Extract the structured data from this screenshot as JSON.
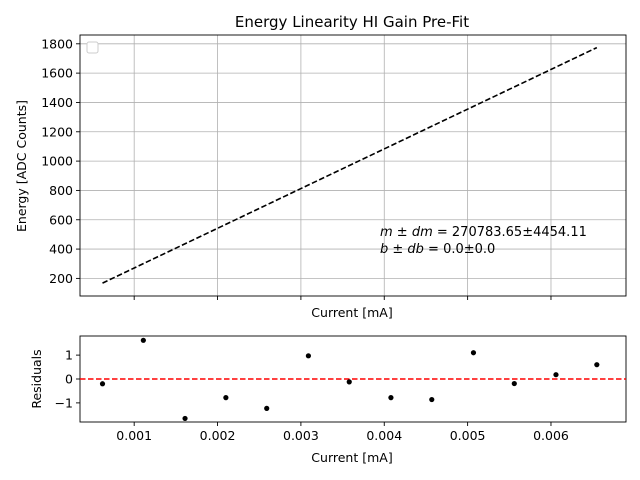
{
  "chart_data": [
    {
      "type": "line",
      "title": "Energy Linearity HI Gain Pre-Fit",
      "xlabel": "Current [mA]",
      "ylabel": "Energy [ADC Counts]",
      "xlim": [
        0.00035,
        0.0069
      ],
      "ylim": [
        80,
        1860
      ],
      "grid": true,
      "legend": "top-left (empty)",
      "yticks": [
        "200",
        "400",
        "600",
        "800",
        "1000",
        "1200",
        "1400",
        "1600",
        "1800"
      ],
      "xticks_shown": false,
      "line_color": "#000000",
      "line_style": "dashed",
      "series": [
        {
          "x": [
            0.00062,
            0.00655
          ],
          "y": [
            168,
            1774
          ]
        }
      ],
      "annotation": {
        "line1_label": "m ± dm",
        "line1_value": " = 270783.65±4454.11",
        "line2_label": "b ± db",
        "line2_value": " = 0.0±0.0"
      }
    },
    {
      "type": "scatter",
      "xlabel": "Current [mA]",
      "ylabel": "Residuals",
      "xlim": [
        0.00035,
        0.0069
      ],
      "ylim": [
        -1.8,
        1.8
      ],
      "grid": false,
      "reference_line": {
        "y": 0,
        "color": "#ff0000",
        "style": "dashed"
      },
      "point_color": "#000000",
      "xticks": [
        "0.001",
        "0.002",
        "0.003",
        "0.004",
        "0.005",
        "0.006"
      ],
      "yticks": [
        "−1",
        "0",
        "1"
      ],
      "series": [
        {
          "x": [
            0.00062,
            0.00111,
            0.00161,
            0.0021,
            0.00259,
            0.00309,
            0.00358,
            0.00408,
            0.00457,
            0.00507,
            0.00556,
            0.00606,
            0.00655
          ],
          "y": [
            -0.2,
            1.62,
            -1.65,
            -0.78,
            -1.23,
            0.97,
            -0.12,
            -0.78,
            -0.86,
            1.1,
            -0.19,
            0.18,
            0.6
          ]
        }
      ]
    }
  ]
}
